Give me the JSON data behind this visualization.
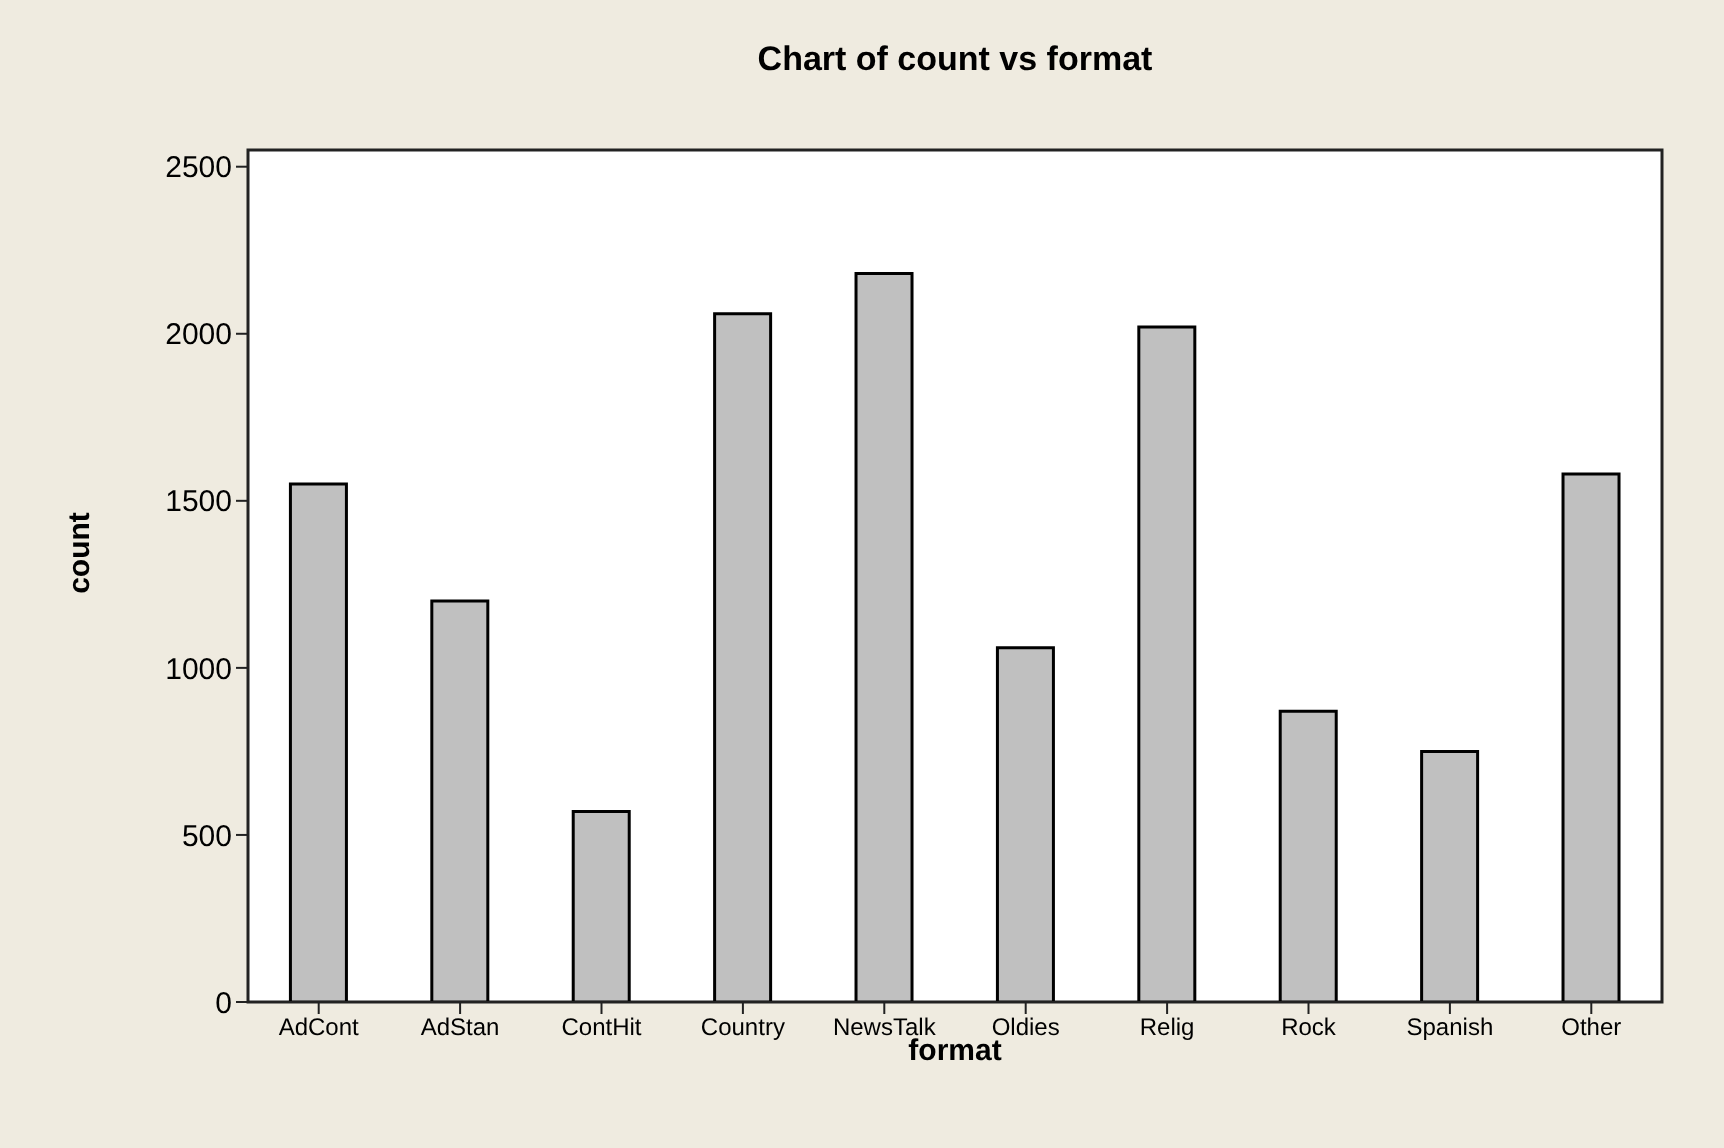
{
  "chart_data": {
    "type": "bar",
    "title": "Chart of count vs format",
    "xlabel": "format",
    "ylabel": "count",
    "categories": [
      "AdCont",
      "AdStan",
      "ContHit",
      "Country",
      "NewsTalk",
      "Oldies",
      "Relig",
      "Rock",
      "Spanish",
      "Other"
    ],
    "values": [
      1550,
      1200,
      570,
      2060,
      2180,
      1060,
      2020,
      870,
      750,
      1580
    ],
    "color": "#c0c0c0",
    "ylim": [
      0,
      2550
    ],
    "yticks": [
      0,
      500,
      1000,
      1500,
      2000,
      2500
    ]
  }
}
